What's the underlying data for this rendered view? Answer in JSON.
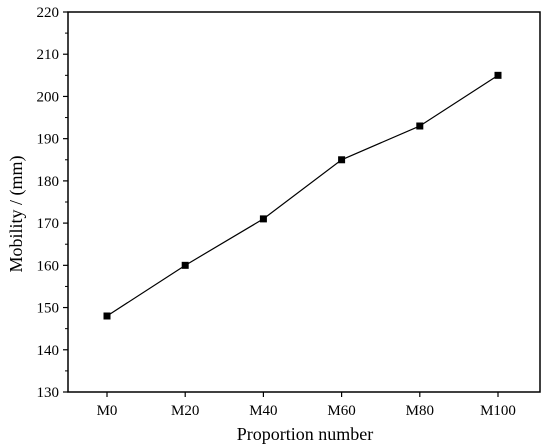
{
  "chart_data": {
    "type": "line",
    "xlabel": "Proportion number",
    "ylabel": "Mobility / (mm)",
    "categories": [
      "M0",
      "M20",
      "M40",
      "M60",
      "M80",
      "M100"
    ],
    "series": [
      {
        "values": [
          148,
          160,
          171,
          185,
          193,
          205
        ]
      }
    ],
    "ylim": [
      130,
      220
    ],
    "yticks": [
      130,
      140,
      150,
      160,
      170,
      180,
      190,
      200,
      210,
      220
    ],
    "grid": false,
    "marker": "square",
    "line_color": "#000000"
  }
}
